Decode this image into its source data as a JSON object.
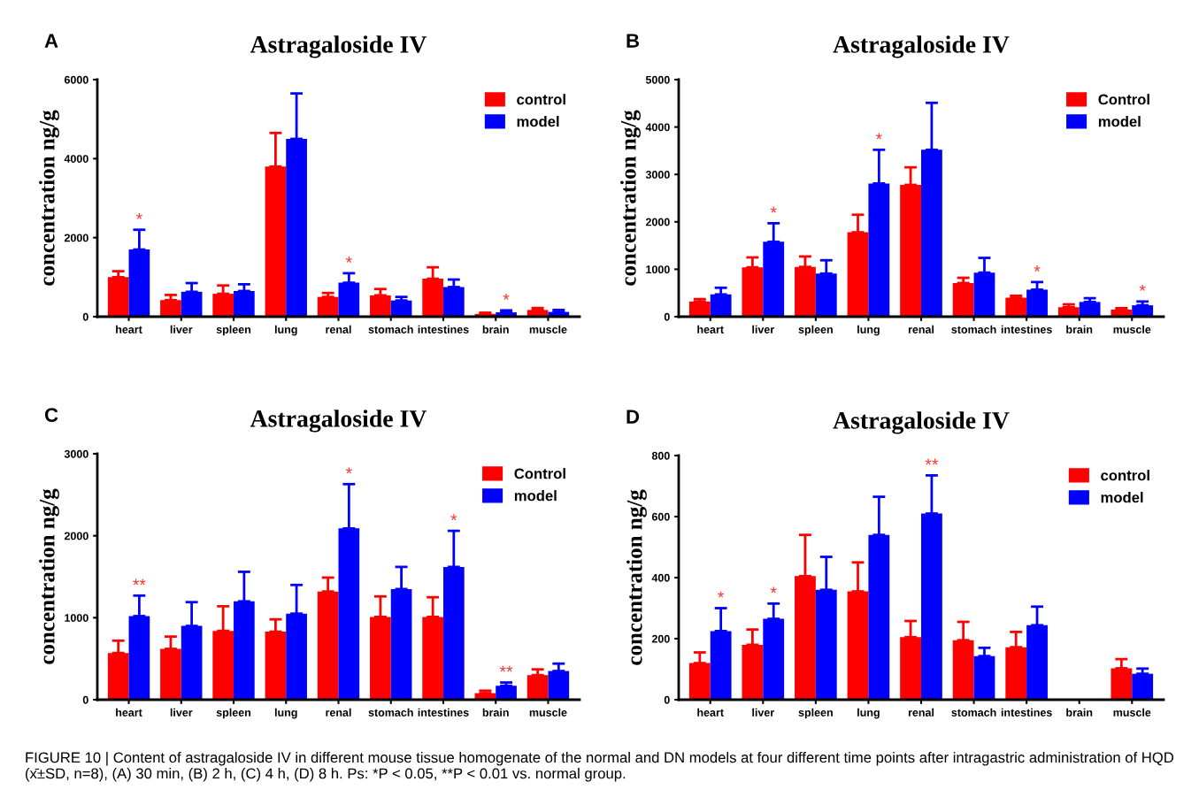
{
  "chart_data": [
    {
      "type": "bar",
      "title": "Astragaloside IV",
      "ylabel": "concentration ng/g",
      "categories": [
        "heart",
        "liver",
        "spleen",
        "lung",
        "renal",
        "stomach",
        "intestines",
        "brain",
        "muscle"
      ],
      "ylim": [
        0,
        6000
      ],
      "yticks": [
        0,
        2000,
        4000,
        6000
      ],
      "legend": "top right",
      "series": [
        {
          "name": "control",
          "color": "#ff0000",
          "values": [
            1000,
            420,
            580,
            3800,
            500,
            540,
            960,
            70,
            170
          ],
          "errors": [
            [
              1000,
              1150
            ],
            [
              420,
              550
            ],
            [
              580,
              790
            ],
            [
              3800,
              4650
            ],
            [
              500,
              600
            ],
            [
              540,
              700
            ],
            [
              960,
              1250
            ],
            [
              70,
              100
            ],
            [
              170,
              220
            ]
          ]
        },
        {
          "name": "model",
          "color": "#0000ff",
          "values": [
            1700,
            630,
            650,
            4500,
            860,
            410,
            750,
            110,
            120
          ],
          "errors": [
            [
              1700,
              2200
            ],
            [
              630,
              850
            ],
            [
              650,
              820
            ],
            [
              4500,
              5650
            ],
            [
              860,
              1100
            ],
            [
              410,
              500
            ],
            [
              750,
              940
            ],
            [
              110,
              160
            ],
            [
              120,
              170
            ]
          ]
        }
      ],
      "annotations": [
        "A",
        {
          "text": "*",
          "x": "heart",
          "y": 2200
        },
        {
          "text": "*",
          "x": "renal",
          "y": 1100
        },
        {
          "text": "*",
          "x": "brain",
          "y": 160
        }
      ]
    },
    {
      "type": "bar",
      "title": "Astragaloside IV",
      "ylabel": "concentration ng/g",
      "categories": [
        "heart",
        "liver",
        "spleen",
        "lung",
        "renal",
        "stomach",
        "intestines",
        "brain",
        "muscle"
      ],
      "ylim": [
        0,
        5000
      ],
      "yticks": [
        0,
        1000,
        2000,
        3000,
        4000,
        5000
      ],
      "legend": "top right",
      "series": [
        {
          "name": "Control",
          "color": "#ff0000",
          "values": [
            320,
            1040,
            1050,
            1780,
            2780,
            710,
            400,
            200,
            150
          ],
          "errors": [
            [
              320,
              370
            ],
            [
              1040,
              1250
            ],
            [
              1050,
              1270
            ],
            [
              1780,
              2150
            ],
            [
              2780,
              3150
            ],
            [
              710,
              820
            ],
            [
              400,
              440
            ],
            [
              200,
              260
            ],
            [
              150,
              180
            ]
          ]
        },
        {
          "name": "model",
          "color": "#0000ff",
          "values": [
            470,
            1580,
            910,
            2810,
            3520,
            930,
            570,
            310,
            240
          ],
          "errors": [
            [
              470,
              610
            ],
            [
              1580,
              1970
            ],
            [
              910,
              1190
            ],
            [
              2810,
              3520
            ],
            [
              3520,
              4510
            ],
            [
              930,
              1240
            ],
            [
              570,
              730
            ],
            [
              310,
              390
            ],
            [
              240,
              320
            ]
          ]
        }
      ],
      "annotations": [
        "B",
        {
          "text": "*",
          "x": "liver",
          "y": 1970
        },
        {
          "text": "*",
          "x": "lung",
          "y": 3520
        },
        {
          "text": "*",
          "x": "intestines",
          "y": 730
        },
        {
          "text": "*",
          "x": "muscle",
          "y": 320
        }
      ]
    },
    {
      "type": "bar",
      "title": "Astragaloside IV",
      "ylabel": "concentration ng/g",
      "categories": [
        "heart",
        "liver",
        "spleen",
        "lung",
        "renal",
        "stomach",
        "intestines",
        "brain",
        "muscle"
      ],
      "ylim": [
        0,
        3000
      ],
      "yticks": [
        0,
        1000,
        2000,
        3000
      ],
      "legend": "top right",
      "series": [
        {
          "name": "Control",
          "color": "#ff0000",
          "values": [
            570,
            620,
            840,
            830,
            1320,
            1010,
            1010,
            80,
            300
          ],
          "errors": [
            [
              570,
              720
            ],
            [
              620,
              770
            ],
            [
              840,
              1140
            ],
            [
              830,
              980
            ],
            [
              1320,
              1490
            ],
            [
              1010,
              1260
            ],
            [
              1010,
              1250
            ],
            [
              80,
              110
            ],
            [
              300,
              370
            ]
          ]
        },
        {
          "name": "model",
          "color": "#0000ff",
          "values": [
            1020,
            900,
            1200,
            1050,
            2090,
            1350,
            1620,
            170,
            350
          ],
          "errors": [
            [
              1020,
              1270
            ],
            [
              900,
              1190
            ],
            [
              1200,
              1560
            ],
            [
              1050,
              1400
            ],
            [
              2090,
              2630
            ],
            [
              1350,
              1620
            ],
            [
              1620,
              2060
            ],
            [
              170,
              210
            ],
            [
              350,
              440
            ]
          ]
        }
      ],
      "annotations": [
        "C",
        {
          "text": "**",
          "x": "heart",
          "y": 1270
        },
        {
          "text": "*",
          "x": "renal",
          "y": 2630
        },
        {
          "text": "*",
          "x": "intestines",
          "y": 2060
        },
        {
          "text": "**",
          "x": "brain",
          "y": 210
        }
      ]
    },
    {
      "type": "bar",
      "title": "Astragaloside IV",
      "ylabel": "concentration ng/g",
      "categories": [
        "heart",
        "liver",
        "spleen",
        "lung",
        "renal",
        "stomach",
        "intestines",
        "brain",
        "muscle"
      ],
      "ylim": [
        0,
        800
      ],
      "yticks": [
        0,
        200,
        400,
        600,
        800
      ],
      "legend": "top right",
      "series": [
        {
          "name": "control",
          "color": "#ff0000",
          "values": [
            120,
            180,
            405,
            355,
            205,
            195,
            172,
            null,
            103
          ],
          "errors": [
            [
              120,
              155
            ],
            [
              180,
              230
            ],
            [
              405,
              540
            ],
            [
              355,
              450
            ],
            [
              205,
              258
            ],
            [
              195,
              255
            ],
            [
              172,
              222
            ],
            null,
            [
              103,
              133
            ]
          ]
        },
        {
          "name": "model",
          "color": "#0000ff",
          "values": [
            225,
            265,
            360,
            540,
            610,
            143,
            244,
            null,
            85
          ],
          "errors": [
            [
              225,
              300
            ],
            [
              265,
              315
            ],
            [
              360,
              468
            ],
            [
              540,
              665
            ],
            [
              610,
              735
            ],
            [
              143,
              170
            ],
            [
              244,
              305
            ],
            null,
            [
              85,
              102
            ]
          ]
        }
      ],
      "annotations": [
        "D",
        {
          "text": "*",
          "x": "heart",
          "y": 300
        },
        {
          "text": "*",
          "x": "liver",
          "y": 315
        },
        {
          "text": "**",
          "x": "renal",
          "y": 735
        },
        "FIGURE 10 | Content of astragaloside IV in different mouse tissue homogenate of the normal and DN models at four different time points after intragastric administration of HQD (x̄±SD, n=8), (A) 30 min, (B) 2 h, (C) 4 h, (D) 8 h. Ps: *P < 0.05, **P < 0.01 vs. normal group."
      ]
    }
  ]
}
